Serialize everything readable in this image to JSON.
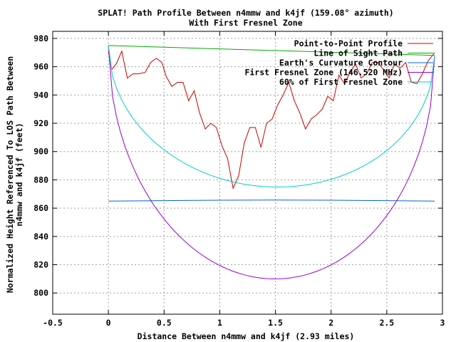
{
  "chart_data": {
    "type": "line",
    "title": "SPLAT! Path Profile Between n4mmw and k4jf (159.08° azimuth)",
    "subtitle": "With First Fresnel Zone",
    "xlabel": "Distance Between n4mmw and k4jf (2.93 miles)",
    "ylabel": "Normalized Height Referenced To LOS Path Between n4mmw and k4jf (feet)",
    "ylabel_lines": [
      "Normalized Height Referenced To LOS Path Between",
      "n4mmw and k4jf (feet)"
    ],
    "xlim": [
      -0.5,
      3.0
    ],
    "ylim": [
      785,
      985
    ],
    "grid": true,
    "legend_position": "top-right",
    "x_ticks": [
      {
        "value": -0.5,
        "label": "-0.5"
      },
      {
        "value": 0,
        "label": "0"
      },
      {
        "value": 0.5,
        "label": "0.5"
      },
      {
        "value": 1,
        "label": "1"
      },
      {
        "value": 1.5,
        "label": "1.5"
      },
      {
        "value": 2,
        "label": "2"
      },
      {
        "value": 2.5,
        "label": "2.5"
      },
      {
        "value": 3,
        "label": "3"
      }
    ],
    "y_ticks": [
      {
        "value": 800,
        "label": "800"
      },
      {
        "value": 820,
        "label": "820"
      },
      {
        "value": 840,
        "label": "840"
      },
      {
        "value": 860,
        "label": "860"
      },
      {
        "value": 880,
        "label": "880"
      },
      {
        "value": 900,
        "label": "900"
      },
      {
        "value": 920,
        "label": "920"
      },
      {
        "value": 940,
        "label": "940"
      },
      {
        "value": 960,
        "label": "960"
      },
      {
        "value": 980,
        "label": "980"
      }
    ],
    "series": [
      {
        "name": "Point-to-Point Profile",
        "color": "#cc0000",
        "x": [
          0.0,
          0.03,
          0.07,
          0.12,
          0.17,
          0.22,
          0.27,
          0.33,
          0.38,
          0.43,
          0.48,
          0.52,
          0.57,
          0.62,
          0.67,
          0.72,
          0.77,
          0.82,
          0.87,
          0.92,
          0.97,
          1.02,
          1.07,
          1.12,
          1.17,
          1.22,
          1.27,
          1.32,
          1.37,
          1.42,
          1.47,
          1.52,
          1.57,
          1.62,
          1.67,
          1.72,
          1.77,
          1.82,
          1.87,
          1.92,
          1.97,
          2.02,
          2.07,
          2.12,
          2.17,
          2.22,
          2.27,
          2.32,
          2.37,
          2.42,
          2.47,
          2.52,
          2.57,
          2.62,
          2.67,
          2.72,
          2.77,
          2.82,
          2.87,
          2.93
        ],
        "values": [
          971,
          958,
          962,
          971,
          952,
          955,
          955,
          956,
          963,
          966,
          963,
          953,
          946,
          949,
          949,
          936,
          943,
          927,
          916,
          920,
          917,
          904,
          895,
          874,
          883,
          906,
          917,
          917,
          903,
          920,
          923,
          933,
          940,
          949,
          936,
          927,
          916,
          923,
          926,
          930,
          939,
          936,
          954,
          948,
          956,
          962,
          952,
          955,
          963,
          963,
          958,
          952,
          962,
          959,
          963,
          949,
          948,
          955,
          964,
          970
        ]
      },
      {
        "name": "Line of Sight Path",
        "color": "#00aa00",
        "x": [
          0.0,
          2.93
        ],
        "values": [
          975,
          968
        ]
      },
      {
        "name": "Earth's Curvature Contour",
        "color": "#0066cc",
        "x": [
          0.0,
          0.5,
          1.0,
          1.465,
          2.0,
          2.5,
          2.93
        ],
        "values": [
          865,
          865.3,
          865.6,
          865.7,
          865.6,
          865.3,
          865
        ]
      },
      {
        "name": "First Fresnel Zone (146.520 MHz)",
        "color": "#9900cc",
        "shape": "fresnel",
        "center": 810,
        "endpoints": [
          975,
          968
        ]
      },
      {
        "name": "60% of First Fresnel Zone",
        "color": "#00cccc",
        "shape": "fresnel",
        "center": 875,
        "endpoints": [
          975,
          968
        ]
      }
    ]
  }
}
